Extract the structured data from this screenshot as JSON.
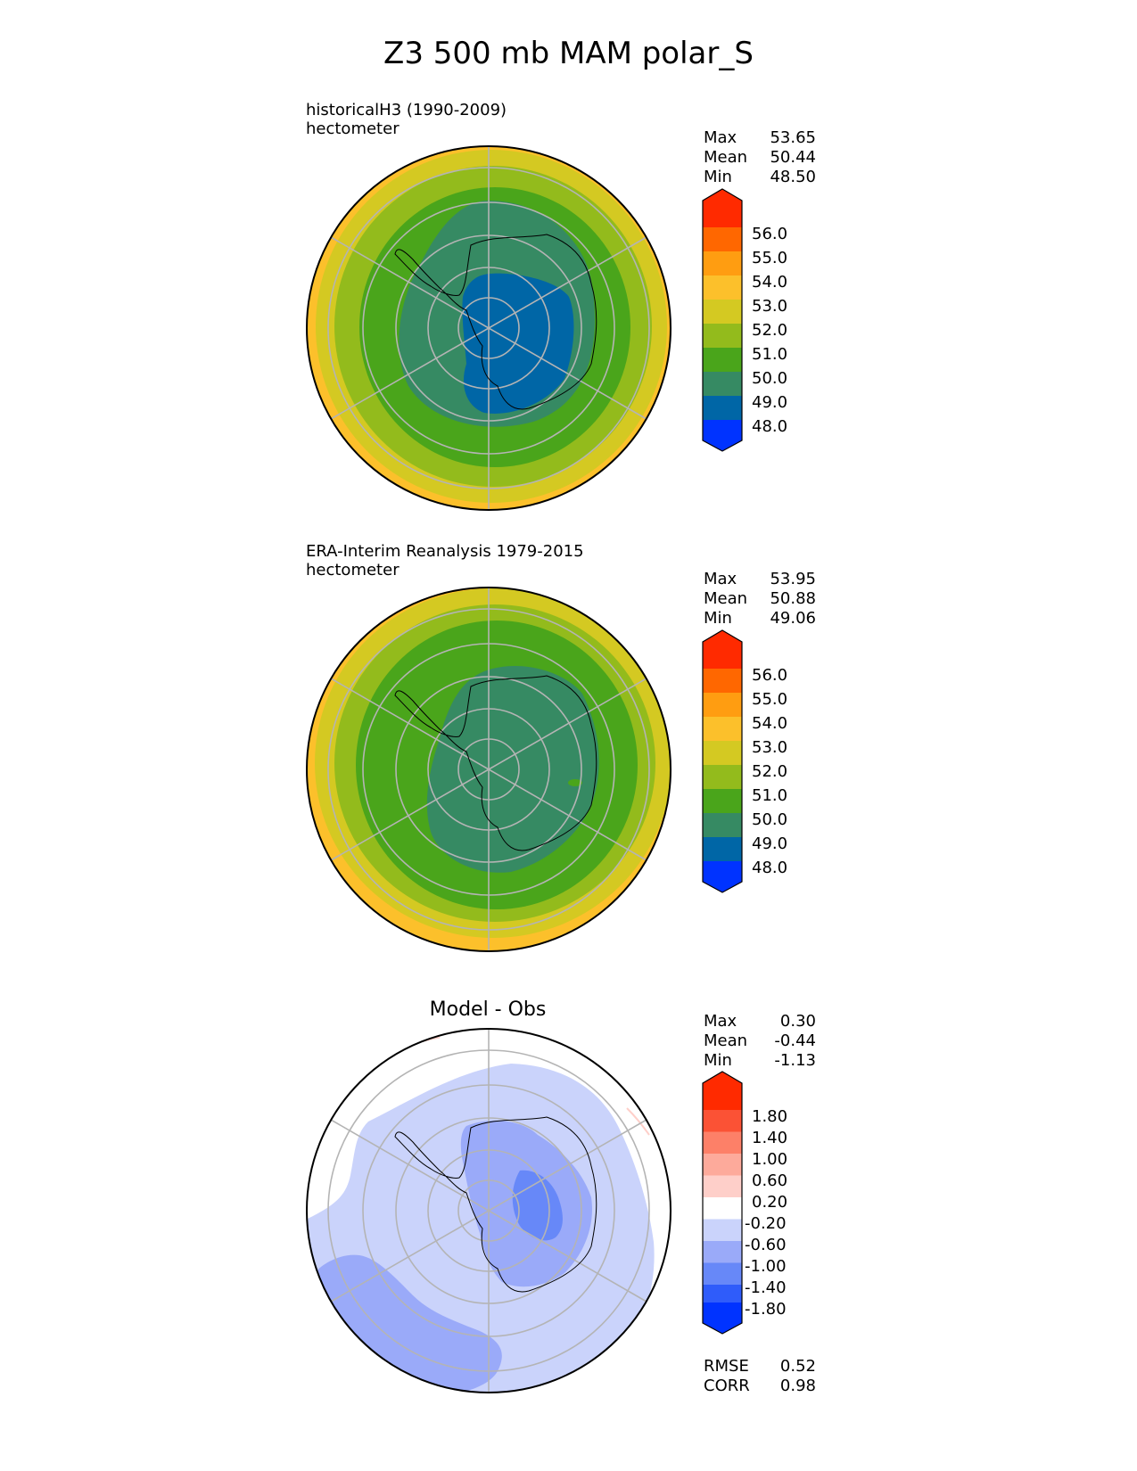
{
  "title": "Z3 500 mb MAM polar_S",
  "panels": [
    {
      "subtitle_lines": [
        "historicalH3 (1990-2009)",
        "hectometer"
      ],
      "stats": [
        {
          "label": "Max",
          "value": "53.65"
        },
        {
          "label": "Mean",
          "value": "50.44"
        },
        {
          "label": "Min",
          "value": "48.50"
        }
      ],
      "colorbar": {
        "colors": [
          "#0033ff",
          "#0066a6",
          "#368a63",
          "#4aa51b",
          "#93bb1c",
          "#d4c922",
          "#fcc02b",
          "#ff9d11",
          "#ff6700",
          "#ff2a00"
        ],
        "labels": [
          "48.0",
          "49.0",
          "50.0",
          "51.0",
          "52.0",
          "53.0",
          "54.0",
          "55.0",
          "56.0"
        ]
      }
    },
    {
      "subtitle_lines": [
        "ERA-Interim Reanalysis 1979-2015",
        "hectometer"
      ],
      "stats": [
        {
          "label": "Max",
          "value": "53.95"
        },
        {
          "label": "Mean",
          "value": "50.88"
        },
        {
          "label": "Min",
          "value": "49.06"
        }
      ],
      "colorbar": {
        "colors": [
          "#0033ff",
          "#0066a6",
          "#368a63",
          "#4aa51b",
          "#93bb1c",
          "#d4c922",
          "#fcc02b",
          "#ff9d11",
          "#ff6700",
          "#ff2a00"
        ],
        "labels": [
          "48.0",
          "49.0",
          "50.0",
          "51.0",
          "52.0",
          "53.0",
          "54.0",
          "55.0",
          "56.0"
        ]
      }
    },
    {
      "center_title": "Model - Obs",
      "stats": [
        {
          "label": "Max",
          "value": "0.30"
        },
        {
          "label": "Mean",
          "value": "-0.44"
        },
        {
          "label": "Min",
          "value": "-1.13"
        }
      ],
      "colorbar": {
        "colors": [
          "#0033ff",
          "#2f5cfa",
          "#6788f8",
          "#9aaaf9",
          "#cad3fb",
          "#ffffff",
          "#fecfc9",
          "#fdaa9b",
          "#fd8068",
          "#fb5235",
          "#ff2a00"
        ],
        "labels": [
          "-1.80",
          "-1.40",
          "-1.00",
          "-0.60",
          "-0.20",
          "0.20",
          "0.60",
          "1.00",
          "1.40",
          "1.80"
        ]
      },
      "metrics": [
        {
          "label": "RMSE",
          "value": "0.52"
        },
        {
          "label": "CORR",
          "value": "0.98"
        }
      ]
    }
  ],
  "chart_data": [
    {
      "type": "heatmap",
      "title": "historicalH3 (1990-2009)",
      "units": "hectometer",
      "projection": "south polar stereographic",
      "contour_levels": [
        48.0,
        49.0,
        50.0,
        51.0,
        52.0,
        53.0,
        54.0,
        55.0,
        56.0
      ],
      "bands_from_pole": [
        {
          "range": "49-50",
          "approx_extent_deg_colat": 18
        },
        {
          "range": "50-51",
          "approx_extent_deg_colat": 32
        },
        {
          "range": "51-52",
          "approx_extent_deg_colat": 42
        },
        {
          "range": "52-53",
          "approx_extent_deg_colat": 50
        },
        {
          "range": "53-54",
          "approx_extent_deg_colat": 55
        }
      ],
      "max": 53.65,
      "mean": 50.44,
      "min": 48.5
    },
    {
      "type": "heatmap",
      "title": "ERA-Interim Reanalysis 1979-2015",
      "units": "hectometer",
      "projection": "south polar stereographic",
      "contour_levels": [
        48.0,
        49.0,
        50.0,
        51.0,
        52.0,
        53.0,
        54.0,
        55.0,
        56.0
      ],
      "bands_from_pole": [
        {
          "range": "50-51",
          "approx_extent_deg_colat": 27
        },
        {
          "range": "51-52",
          "approx_extent_deg_colat": 41
        },
        {
          "range": "52-53",
          "approx_extent_deg_colat": 49
        },
        {
          "range": "53-54",
          "approx_extent_deg_colat": 55
        }
      ],
      "max": 53.95,
      "mean": 50.88,
      "min": 49.06
    },
    {
      "type": "heatmap",
      "title": "Model - Obs",
      "projection": "south polar stereographic",
      "contour_levels": [
        -1.8,
        -1.4,
        -1.0,
        -0.6,
        -0.2,
        0.2,
        0.6,
        1.0,
        1.4,
        1.8
      ],
      "max": 0.3,
      "mean": -0.44,
      "min": -1.13,
      "rmse": 0.52,
      "corr": 0.98
    }
  ]
}
